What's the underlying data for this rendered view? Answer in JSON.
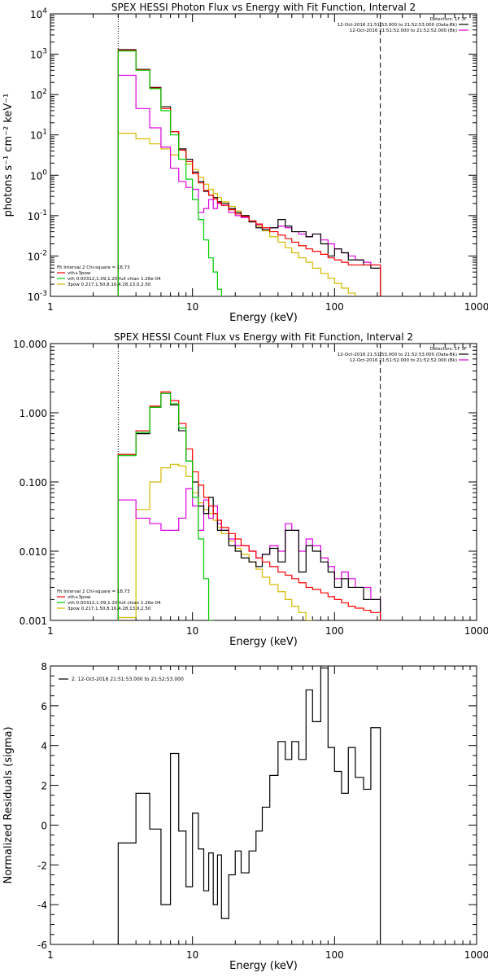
{
  "chart_data": [
    {
      "id": "photon",
      "type": "line",
      "title": "SPEX HESSI Photon Flux vs Energy with Fit Function, Interval 2",
      "xlabel": "Energy (keV)",
      "ylabel": "photons s⁻¹ cm⁻² keV⁻¹",
      "x_scale": "log",
      "y_scale": "log",
      "xlim": [
        1,
        1000
      ],
      "ylim": [
        0.001,
        10000
      ],
      "xticks": [
        1,
        10,
        100,
        1000
      ],
      "xtick_labels": [
        "1",
        "10",
        "100",
        "1000"
      ],
      "yticks": [
        0.001,
        0.01,
        0.1,
        1,
        10,
        100,
        1000,
        10000
      ],
      "ytick_labels": [
        [
          "10",
          "-3"
        ],
        [
          "10",
          "-2"
        ],
        [
          "10",
          "-1"
        ],
        [
          "10",
          "0"
        ],
        [
          "10",
          "1"
        ],
        [
          "10",
          "2"
        ],
        [
          "10",
          "3"
        ],
        [
          "10",
          "4"
        ]
      ],
      "vlines": [
        3,
        210
      ],
      "legend_topright": {
        "header": "Detectors: 1F 3F",
        "entries": [
          {
            "text": "12-Oct-2016 21:51:53.000 to 21:52:53.000 (Data-Bk)",
            "color": "#000000"
          },
          {
            "text": "12-Oct-2016 21:51:52.000 to 21:52:52.000 (Bk)",
            "color": "#e000e0"
          }
        ]
      },
      "legend_bottomleft": {
        "header": "Fit Interval 2   Chi-square = 18.73",
        "entries": [
          {
            "text": "vth+3pow",
            "color": "#ff0000"
          },
          {
            "text": "vth 0.00312,1.09,1.20  full chian 1.26e-04",
            "color": "#00cc00"
          },
          {
            "text": "3pow 0.217,1.50,8.16,4.28,13.0,2.50",
            "color": "#d4b800"
          }
        ]
      },
      "edges": [
        3,
        4,
        5,
        6,
        7,
        8,
        9,
        10,
        11,
        12,
        13,
        14,
        15,
        16,
        18,
        20,
        22,
        25,
        28,
        31,
        35,
        40,
        45,
        50,
        56,
        63,
        70,
        80,
        90,
        100,
        112,
        125,
        140,
        160,
        180,
        210
      ],
      "series": [
        {
          "name": "Data-Bk",
          "color": "#000000",
          "values": [
            1300,
            420,
            150,
            50,
            12,
            4.5,
            2.5,
            1.2,
            0.7,
            0.4,
            0.32,
            0.28,
            0.22,
            0.2,
            0.15,
            0.12,
            0.1,
            0.07,
            0.05,
            0.045,
            0.05,
            0.08,
            0.055,
            0.04,
            0.04,
            0.03,
            0.035,
            0.02,
            0.01,
            0.015,
            0.012,
            0.008,
            0.008,
            0.006,
            0.005
          ]
        },
        {
          "name": "vth+3pow",
          "color": "#ff0000",
          "values": [
            1250,
            410,
            145,
            45,
            12,
            4.2,
            2.2,
            1.1,
            0.65,
            0.42,
            0.32,
            0.26,
            0.21,
            0.18,
            0.14,
            0.11,
            0.095,
            0.075,
            0.062,
            0.05,
            0.04,
            0.033,
            0.027,
            0.022,
            0.018,
            0.015,
            0.013,
            0.011,
            0.009,
            0.008,
            0.007,
            0.006,
            0.006,
            0.006,
            0.006
          ]
        },
        {
          "name": "vth",
          "color": "#00cc00",
          "values": [
            1200,
            400,
            140,
            40,
            10,
            2.5,
            0.8,
            0.25,
            0.08,
            0.025,
            0.009,
            0.004,
            0.0015,
            0.0008,
            0.0008,
            0.0008,
            0.0008,
            0.0008,
            0.0008,
            0.0008,
            0.0008,
            0.0008,
            0.0008,
            0.0008,
            0.0008,
            0.0008,
            0.0008,
            0.0008,
            0.0008,
            0.0008,
            0.0008,
            0.0008,
            0.0008,
            0.0008,
            0.0008
          ]
        },
        {
          "name": "3pow",
          "color": "#d4b800",
          "values": [
            11,
            8,
            6,
            4.5,
            3.2,
            2.5,
            1.9,
            1.4,
            0.9,
            0.6,
            0.45,
            0.35,
            0.28,
            0.22,
            0.17,
            0.13,
            0.1,
            0.075,
            0.055,
            0.042,
            0.03,
            0.022,
            0.016,
            0.012,
            0.009,
            0.007,
            0.005,
            0.0037,
            0.0028,
            0.0021,
            0.0016,
            0.0012,
            0.0009,
            0.0008,
            0.0008
          ]
        },
        {
          "name": "Bk",
          "color": "#e000e0",
          "values": [
            300,
            45,
            15,
            5,
            1.5,
            0.7,
            0.5,
            0.45,
            0.12,
            0.15,
            0.25,
            0.15,
            0.2,
            0.18,
            0.12,
            0.1,
            0.09,
            0.07,
            0.06,
            0.045,
            0.05,
            0.055,
            0.05,
            0.04,
            0.035,
            0.03,
            0.035,
            0.025,
            0.02,
            0.015,
            0.012,
            0.01,
            0.008,
            0.007,
            0.006
          ]
        }
      ]
    },
    {
      "id": "count",
      "type": "line",
      "title": "SPEX HESSI Count Flux vs Energy with Fit Function, Interval 2",
      "xlabel": "Energy (keV)",
      "ylabel": "",
      "x_scale": "log",
      "y_scale": "log",
      "xlim": [
        1,
        1000
      ],
      "ylim": [
        0.001,
        10
      ],
      "xticks": [
        1,
        10,
        100,
        1000
      ],
      "xtick_labels": [
        "1",
        "10",
        "100",
        "1000"
      ],
      "yticks": [
        0.001,
        0.01,
        0.1,
        1,
        10
      ],
      "ytick_labels": [
        "0.001",
        "0.010",
        "0.100",
        "1.000",
        "10.000"
      ],
      "vlines": [
        3,
        210
      ],
      "legend_topright": {
        "header": "Detectors: 1F 3F",
        "entries": [
          {
            "text": "12-Oct-2016 21:51:53.000 to 21:52:53.000 (Data-Bk)",
            "color": "#000000"
          },
          {
            "text": "12-Oct-2016 21:51:52.000 to 21:52:52.000 (Bk)",
            "color": "#e000e0"
          }
        ]
      },
      "legend_bottomleft": {
        "header": "Fit Interval 2   Chi-square = 18.73",
        "entries": [
          {
            "text": "vth+3pow",
            "color": "#ff0000"
          },
          {
            "text": "vth 0.00312,1.09,1.20  full chian 1.26e-04",
            "color": "#00cc00"
          },
          {
            "text": "3pow 0.217,1.50,8.16,4.28,13.0,2.50",
            "color": "#d4b800"
          }
        ]
      },
      "edges": [
        3,
        4,
        5,
        6,
        7,
        8,
        9,
        10,
        11,
        12,
        13,
        14,
        15,
        16,
        18,
        20,
        22,
        25,
        28,
        31,
        35,
        40,
        45,
        50,
        56,
        63,
        70,
        80,
        90,
        100,
        112,
        125,
        140,
        160,
        180,
        210
      ],
      "series": [
        {
          "name": "Data-Bk",
          "color": "#000000",
          "values": [
            0.25,
            0.5,
            1.2,
            1.9,
            1.3,
            0.55,
            0.2,
            0.1,
            0.045,
            0.035,
            0.06,
            0.035,
            0.02,
            0.02,
            0.012,
            0.01,
            0.008,
            0.007,
            0.006,
            0.009,
            0.011,
            0.007,
            0.02,
            0.02,
            0.005,
            0.012,
            0.01,
            0.007,
            0.005,
            0.003,
            0.004,
            0.003,
            0.003,
            0.002,
            0.002
          ]
        },
        {
          "name": "vth+3pow",
          "color": "#ff0000",
          "values": [
            0.25,
            0.55,
            1.25,
            2.0,
            1.5,
            0.7,
            0.3,
            0.14,
            0.09,
            0.06,
            0.045,
            0.035,
            0.028,
            0.022,
            0.018,
            0.015,
            0.012,
            0.01,
            0.008,
            0.007,
            0.006,
            0.005,
            0.0045,
            0.004,
            0.0035,
            0.003,
            0.0028,
            0.0025,
            0.0022,
            0.002,
            0.0018,
            0.0016,
            0.0015,
            0.0014,
            0.0013
          ]
        },
        {
          "name": "vth",
          "color": "#00cc00",
          "values": [
            0.24,
            0.52,
            1.2,
            1.9,
            1.35,
            0.6,
            0.2,
            0.06,
            0.015,
            0.004,
            0.001,
            0.0009,
            0.0009,
            0.0009,
            0.0009,
            0.0009,
            0.0009,
            0.0009,
            0.0009,
            0.0009,
            0.0009,
            0.0009,
            0.0009,
            0.0009,
            0.0009,
            0.0009,
            0.0009,
            0.0009,
            0.0009,
            0.0009,
            0.0009,
            0.0009,
            0.0009,
            0.0009,
            0.0009
          ]
        },
        {
          "name": "3pow",
          "color": "#d4b800",
          "values": [
            0.0011,
            0.04,
            0.1,
            0.16,
            0.18,
            0.17,
            0.12,
            0.07,
            0.05,
            0.04,
            0.035,
            0.028,
            0.022,
            0.018,
            0.014,
            0.011,
            0.009,
            0.007,
            0.0055,
            0.0042,
            0.0033,
            0.0026,
            0.002,
            0.0016,
            0.0013,
            0.001,
            0.0009,
            0.0009,
            0.0009,
            0.0009,
            0.0009,
            0.0009,
            0.0009,
            0.0009,
            0.0009
          ]
        },
        {
          "name": "Bk",
          "color": "#e000e0",
          "values": [
            0.055,
            0.03,
            0.025,
            0.02,
            0.02,
            0.03,
            0.08,
            0.045,
            0.02,
            0.055,
            0.03,
            0.045,
            0.025,
            0.02,
            0.015,
            0.012,
            0.012,
            0.01,
            0.008,
            0.009,
            0.012,
            0.01,
            0.025,
            0.02,
            0.01,
            0.015,
            0.012,
            0.008,
            0.006,
            0.004,
            0.005,
            0.004,
            0.003,
            0.003,
            0.002
          ]
        }
      ]
    },
    {
      "id": "resid",
      "type": "line",
      "title": "",
      "xlabel": "Energy (keV)",
      "ylabel": "Normalized Residuals (sigma)",
      "x_scale": "log",
      "y_scale": "linear",
      "xlim": [
        1,
        1000
      ],
      "ylim": [
        -6,
        8
      ],
      "xticks": [
        1,
        10,
        100,
        1000
      ],
      "xtick_labels": [
        "1",
        "10",
        "100",
        "1000"
      ],
      "yticks": [
        -6,
        -4,
        -2,
        0,
        2,
        4,
        6,
        8
      ],
      "ytick_labels": [
        "-6",
        "-4",
        "-2",
        "0",
        "2",
        "4",
        "6",
        "8"
      ],
      "legend_topleft": {
        "entries": [
          {
            "text": "2. 12-Oct-2016 21:51:53.000 to 21:52:53.000",
            "color": "#000000"
          }
        ]
      },
      "edges": [
        3,
        4,
        5,
        6,
        7,
        8,
        9,
        10,
        11,
        12,
        13,
        14,
        15,
        16,
        18,
        20,
        22,
        25,
        28,
        31,
        35,
        40,
        45,
        50,
        56,
        63,
        70,
        80,
        90,
        100,
        112,
        125,
        140,
        160,
        180,
        210
      ],
      "series": [
        {
          "name": "",
          "color": "#000000",
          "values": [
            -0.9,
            1.6,
            -0.2,
            -4.0,
            3.6,
            -0.3,
            -3.1,
            0.6,
            -1.2,
            -3.3,
            -1.4,
            -4.0,
            -1.5,
            -4.7,
            -2.5,
            -1.3,
            -2.4,
            -1.3,
            -0.3,
            0.9,
            2.5,
            4.2,
            3.3,
            4.2,
            3.3,
            6.8,
            5.2,
            7.9,
            3.9,
            2.7,
            1.6,
            3.9,
            2.4,
            1.8,
            4.9
          ]
        }
      ]
    }
  ]
}
